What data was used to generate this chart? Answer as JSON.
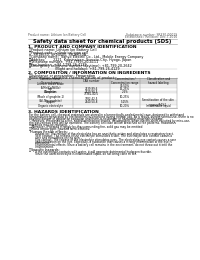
{
  "header_left": "Product name: Lithium Ion Battery Cell",
  "header_right1": "Substance number: SR330-0001S",
  "header_right2": "Established / Revision: Dec.7.2016",
  "title": "Safety data sheet for chemical products (SDS)",
  "section1_header": "1. PRODUCT AND COMPANY IDENTIFICATION",
  "section1_items": [
    "・Product name: Lithium Ion Battery Cell",
    "・Product code: Cylindrical-type cell",
    "    SR18650, SR14500, SR16650A",
    "・Company name:  Sanyo Electric Co., Ltd., Mobile Energy Company",
    "・Address:       2221  Kaminaizen, Sumoto-City, Hyogo, Japan",
    "・Telephone number:  +81-(799)-20-4111",
    "・Fax number:  +81-1799-26-4129",
    "・Emergency telephone number (daytime): +81-799-20-2642",
    "                       (Night and holiday): +81-799-26-4129"
  ],
  "section2_header": "2. COMPOSITON / INFORMATION ON INGREDIENTS",
  "section2_intro": "・Substance or preparation: Preparation",
  "section2_sub": "・Information about the chemical nature of product:",
  "col_labels": [
    "Common name /\nGeneral name",
    "CAS number",
    "Concentration /\nConcentration range",
    "Classification and\nhazard labeling"
  ],
  "row_data": [
    [
      "Lithium cobalt oxide\n(LiMn/Co/Ni/Ox)",
      "",
      "30-50%",
      ""
    ],
    [
      "Iron",
      "7439-89-6",
      "15-25%",
      ""
    ],
    [
      "Aluminum",
      "7429-90-5",
      "2-6%",
      ""
    ],
    [
      "Graphite\n(Made of graphite-1)\n(All-Nio graphite)",
      "77381-40-5\n7782-42-5",
      "10-25%",
      ""
    ],
    [
      "Copper",
      "7440-50-8",
      "5-15%",
      "Sensitization of the skin\ngroup R43.2"
    ],
    [
      "Organic electrolyte",
      "",
      "10-20%",
      "Inflammable liquid"
    ]
  ],
  "row_heights": [
    5.5,
    3.5,
    3.5,
    8.5,
    6.5,
    3.5
  ],
  "section3_header": "3. HAZARDS IDENTIFICATION",
  "section3_lines": [
    "For the battery cell, chemical materials are stored in a hermetically-sealed metal case, designed to withstand",
    "temperatures generated by electrochemical reactions during normal use. As a result, during normal-use, there is no",
    "physical danger of ignition or explosion and there is no danger of hazardous materials leakage.",
    "   However, if exposed to a fire, added mechanical shocks, decomposed, when electro-short-circuited by miss-use,",
    "the gas release vent will be operated. The battery cell case will be breached at fire patterns. Hazardous",
    "materials may be released.",
    "   Moreover, if heated strongly by the surrounding fire, solid gas may be emitted."
  ],
  "s3_important": "・Most important hazard and effects:",
  "s3_human": "Human health effects:",
  "s3_inhalation": "      Inhalation: The release of the electrolyte has an anesthetic action and stimulates a respiratory tract.",
  "s3_skin1": "      Skin contact: The release of the electrolyte stimulates a skin. The electrolyte skin contact causes a",
  "s3_skin2": "      sore and stimulation on the skin.",
  "s3_eye1": "      Eye contact: The release of the electrolyte stimulates eyes. The electrolyte eye contact causes a sore",
  "s3_eye2": "      and stimulation on the eye. Especially, a substance that causes a strong inflammation of the eye is",
  "s3_eye3": "      contained.",
  "s3_env1": "      Environmental effects: Since a battery cell remains in the environment, do not throw out it into the",
  "s3_env2": "      environment.",
  "s3_specific": "・Specific hazards:",
  "s3_spec1": "      If the electrolyte contacts with water, it will generate detrimental hydrogen fluoride.",
  "s3_spec2": "      Since the used electrolyte is inflammable liquid, do not bring close to fire.",
  "bg_color": "#ffffff",
  "gray_text": "#555555",
  "lm": 4,
  "rw": 196,
  "fs_tiny": 2.4,
  "fs_title": 3.8,
  "fs_header": 3.2
}
